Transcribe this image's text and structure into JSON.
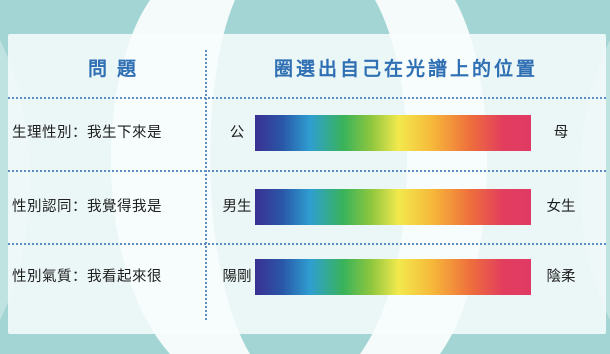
{
  "header": {
    "question_col": "問題",
    "spectrum_col": "圈選出自己在光譜上的位置"
  },
  "rows": [
    {
      "question": "生理性別：我生下來是",
      "left": "公",
      "right": "母"
    },
    {
      "question": "性別認同：我覺得我是",
      "left": "男生",
      "right": "女生"
    },
    {
      "question": "性別氣質：我看起來很",
      "left": "陽剛",
      "right": "陰柔"
    }
  ],
  "colors": {
    "background_teal": "#9fd4d2",
    "panel_white": "#ffffff",
    "header_blue": "#2f6fb3",
    "dotted_line": "#5c8ec4",
    "spectrum_start": "#3a2f92",
    "spectrum_mid": "#f2e94d",
    "spectrum_end": "#e03a64"
  }
}
